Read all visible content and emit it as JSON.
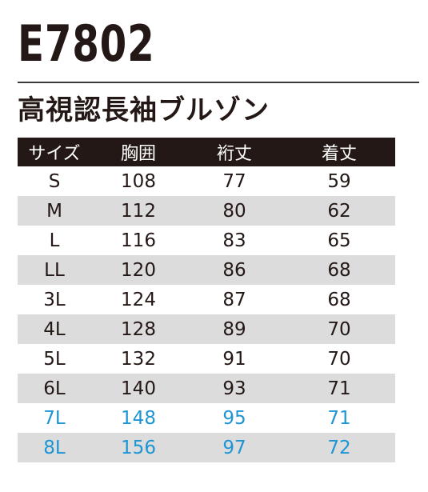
{
  "model": "E7802",
  "product_name": "高視認長袖ブルゾン",
  "colors": {
    "text": "#231815",
    "header_bg": "#231815",
    "stripe": "#dcdcdd",
    "highlight": "#1d95d4"
  },
  "table": {
    "headers": [
      "サイズ",
      "胸囲",
      "裄丈",
      "着丈"
    ],
    "rows": [
      {
        "size": "S",
        "chest": "108",
        "sleeve": "77",
        "length": "59",
        "highlight": false
      },
      {
        "size": "M",
        "chest": "112",
        "sleeve": "80",
        "length": "62",
        "highlight": false
      },
      {
        "size": "L",
        "chest": "116",
        "sleeve": "83",
        "length": "65",
        "highlight": false
      },
      {
        "size": "LL",
        "chest": "120",
        "sleeve": "86",
        "length": "68",
        "highlight": false
      },
      {
        "size": "3L",
        "chest": "124",
        "sleeve": "87",
        "length": "68",
        "highlight": false
      },
      {
        "size": "4L",
        "chest": "128",
        "sleeve": "89",
        "length": "70",
        "highlight": false
      },
      {
        "size": "5L",
        "chest": "132",
        "sleeve": "91",
        "length": "70",
        "highlight": false
      },
      {
        "size": "6L",
        "chest": "140",
        "sleeve": "93",
        "length": "71",
        "highlight": false
      },
      {
        "size": "7L",
        "chest": "148",
        "sleeve": "95",
        "length": "71",
        "highlight": true
      },
      {
        "size": "8L",
        "chest": "156",
        "sleeve": "97",
        "length": "72",
        "highlight": true
      }
    ]
  }
}
